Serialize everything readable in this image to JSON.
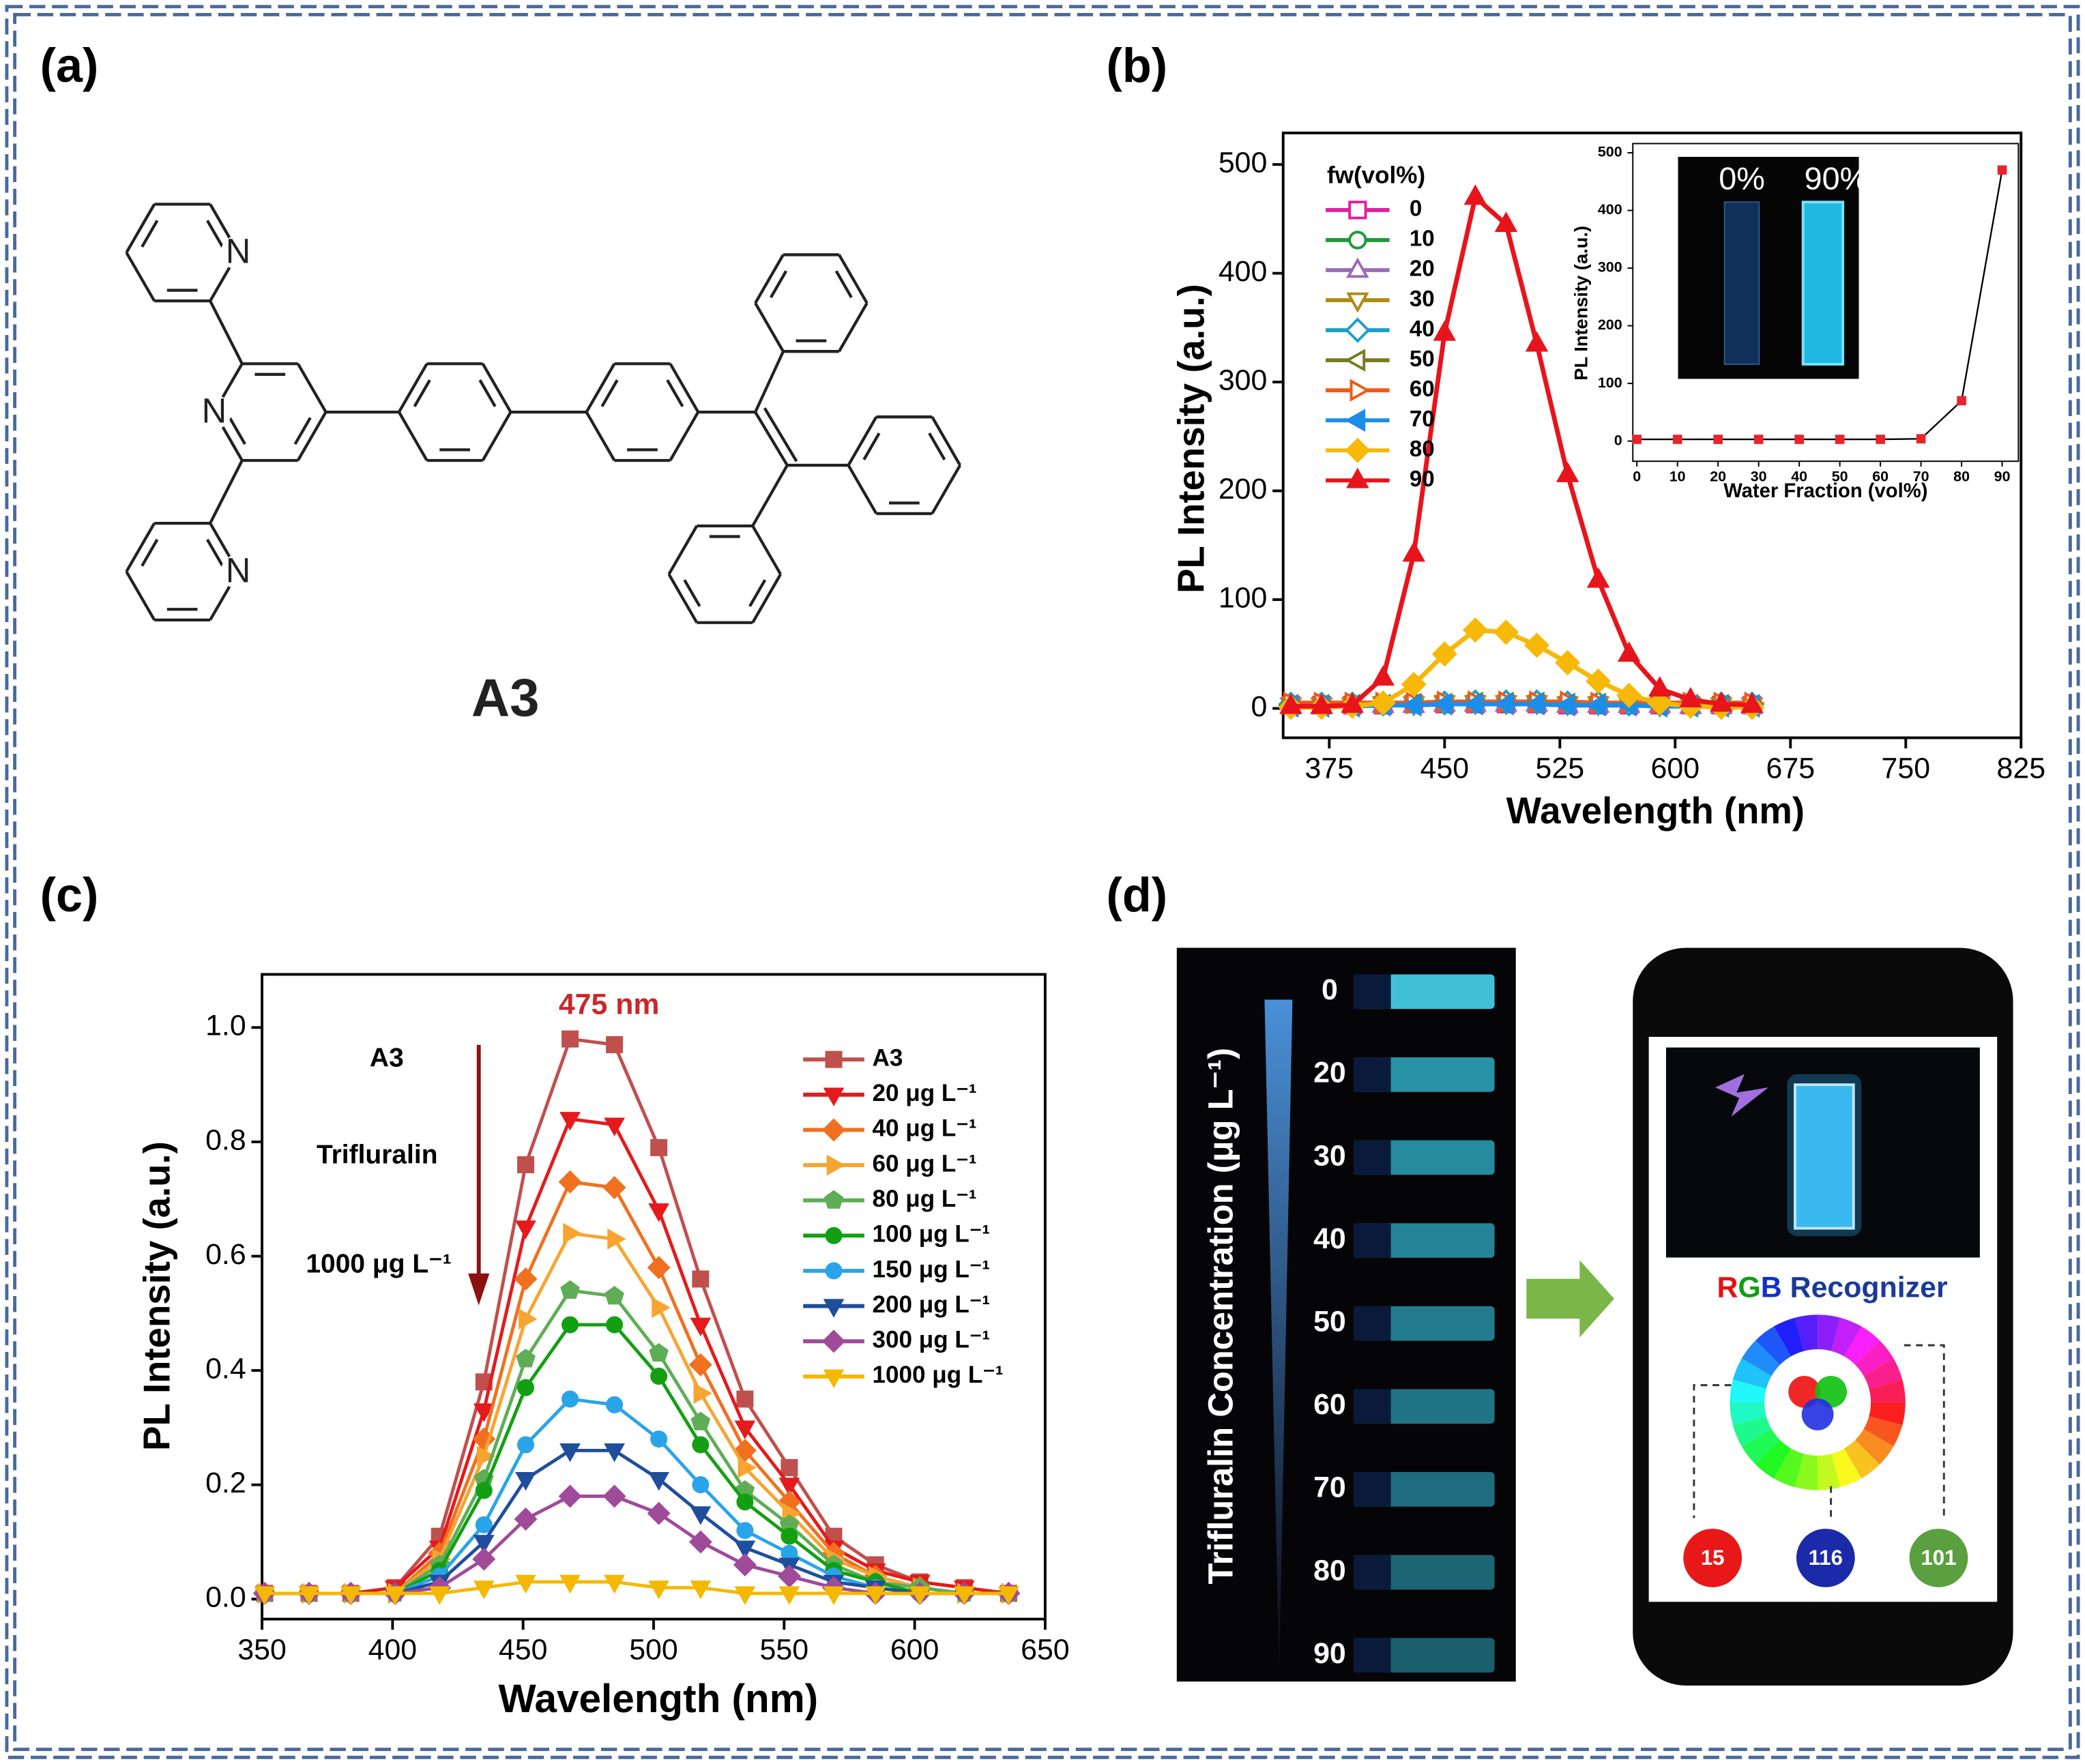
{
  "panel_labels": [
    "(a)",
    "(b)",
    "(c)",
    "(d)"
  ],
  "panel_a": {
    "atoms": [
      "N",
      "N",
      "N"
    ],
    "label": "A3"
  },
  "chart_data": [
    {
      "type": "line",
      "x_label": "Wavelength (nm)",
      "y_label": "PL Intensity (a.u.)",
      "legend_title": "fw(vol%)",
      "x": [
        350,
        370,
        390,
        410,
        430,
        450,
        470,
        490,
        510,
        530,
        550,
        570,
        590,
        610,
        630,
        650
      ],
      "xlim": [
        345,
        825
      ],
      "xticks": [
        375,
        450,
        525,
        600,
        675,
        750,
        825
      ],
      "ylim": [
        -27,
        529
      ],
      "yticks": [
        0,
        100,
        200,
        300,
        400,
        500
      ],
      "series": [
        {
          "name": "0",
          "color": "#e0209a",
          "marker": "square",
          "filled": false,
          "values": [
            3,
            3,
            3,
            3,
            4,
            4,
            4,
            4,
            4,
            3,
            3,
            3,
            3,
            3,
            3,
            3
          ]
        },
        {
          "name": "10",
          "color": "#1e9a3c",
          "marker": "circle",
          "filled": false,
          "values": [
            4,
            4,
            4,
            4,
            4,
            5,
            5,
            5,
            5,
            4,
            4,
            4,
            4,
            4,
            4,
            4
          ]
        },
        {
          "name": "20",
          "color": "#9b6bb8",
          "marker": "triangle-up",
          "filled": false,
          "values": [
            2,
            2,
            3,
            3,
            3,
            4,
            4,
            4,
            4,
            3,
            3,
            3,
            3,
            2,
            2,
            2
          ]
        },
        {
          "name": "30",
          "color": "#b08a10",
          "marker": "triangle-down",
          "filled": false,
          "values": [
            3,
            3,
            3,
            4,
            4,
            5,
            5,
            5,
            5,
            4,
            4,
            4,
            3,
            3,
            3,
            3
          ]
        },
        {
          "name": "40",
          "color": "#1aa0c8",
          "marker": "diamond",
          "filled": false,
          "values": [
            4,
            4,
            4,
            4,
            5,
            5,
            6,
            6,
            6,
            5,
            5,
            4,
            4,
            4,
            4,
            4
          ]
        },
        {
          "name": "50",
          "color": "#7a7a20",
          "marker": "triangle-left",
          "filled": false,
          "values": [
            3,
            3,
            3,
            3,
            4,
            4,
            5,
            5,
            5,
            4,
            4,
            3,
            3,
            3,
            3,
            3
          ]
        },
        {
          "name": "60",
          "color": "#f05a14",
          "marker": "triangle-right",
          "filled": false,
          "values": [
            5,
            5,
            5,
            5,
            5,
            6,
            6,
            6,
            6,
            6,
            5,
            5,
            5,
            5,
            5,
            5
          ]
        },
        {
          "name": "70",
          "color": "#1a8ee8",
          "marker": "triangle-left",
          "filled": true,
          "values": [
            2,
            2,
            2,
            3,
            3,
            4,
            4,
            4,
            4,
            3,
            3,
            3,
            2,
            2,
            2,
            2
          ]
        },
        {
          "name": "80",
          "color": "#f8b808",
          "marker": "diamond",
          "filled": true,
          "values": [
            1,
            1,
            2,
            5,
            22,
            50,
            72,
            70,
            58,
            42,
            25,
            12,
            5,
            2,
            1,
            1
          ]
        },
        {
          "name": "90",
          "color": "#e8141c",
          "marker": "triangle-up",
          "filled": true,
          "values": [
            2,
            2,
            3,
            28,
            142,
            345,
            470,
            445,
            335,
            215,
            118,
            50,
            18,
            8,
            4,
            3
          ]
        }
      ]
    },
    {
      "type": "line",
      "x_label": "Water Fraction (vol%)",
      "y_label": "PL Intensity (a.u.)",
      "photo_labels": [
        "0%",
        "90%"
      ],
      "x": [
        0,
        10,
        20,
        30,
        40,
        50,
        60,
        70,
        80,
        90
      ],
      "xlim": [
        -1,
        94
      ],
      "xticks": [
        0,
        10,
        20,
        30,
        40,
        50,
        60,
        70,
        80,
        90
      ],
      "ylim": [
        -35,
        516
      ],
      "yticks": [
        0,
        100,
        200,
        300,
        400,
        500
      ],
      "series": [
        {
          "color": "#000000",
          "marker_color": "#e8242a",
          "marker": "square",
          "filled": true,
          "values": [
            3,
            3,
            3,
            3,
            3,
            3,
            3,
            4,
            70,
            470
          ]
        }
      ]
    },
    {
      "type": "line",
      "x_label": "Wavelength (nm)",
      "y_label": "PL Intensity (a.u.)",
      "peak_label": "475 nm",
      "arrow_labels": [
        "A3",
        "Trifluralin",
        "1000 μg L⁻¹"
      ],
      "x": [
        351,
        368,
        384,
        401,
        418,
        435,
        451,
        468,
        485,
        502,
        518,
        535,
        552,
        569,
        585,
        602,
        619,
        636
      ],
      "xlim": [
        350,
        650
      ],
      "xticks": [
        350,
        400,
        450,
        500,
        550,
        600,
        650
      ],
      "ylim": [
        -0.035,
        1.093
      ],
      "yticks": [
        {
          "value": 0,
          "label": "0.0"
        },
        0.2,
        0.4,
        0.6,
        0.8,
        {
          "value": 1,
          "label": "1.0"
        }
      ],
      "series": [
        {
          "name": "A3",
          "color": "#c0504d",
          "marker": "square",
          "filled": true,
          "values": [
            0.01,
            0.01,
            0.01,
            0.02,
            0.11,
            0.38,
            0.76,
            0.98,
            0.97,
            0.79,
            0.56,
            0.35,
            0.23,
            0.11,
            0.06,
            0.03,
            0.02,
            0.01
          ]
        },
        {
          "name": "20 μg L⁻¹",
          "color": "#e41a1c",
          "marker": "triangle-down",
          "filled": true,
          "values": [
            0.01,
            0.01,
            0.01,
            0.02,
            0.09,
            0.33,
            0.65,
            0.84,
            0.83,
            0.68,
            0.48,
            0.3,
            0.2,
            0.09,
            0.05,
            0.03,
            0.02,
            0.01
          ]
        },
        {
          "name": "40 μg L⁻¹",
          "color": "#f07020",
          "marker": "diamond",
          "filled": true,
          "values": [
            0.01,
            0.01,
            0.01,
            0.01,
            0.08,
            0.28,
            0.56,
            0.73,
            0.72,
            0.58,
            0.41,
            0.26,
            0.17,
            0.08,
            0.04,
            0.02,
            0.01,
            0.01
          ]
        },
        {
          "name": "60 μg L⁻¹",
          "color": "#f7a530",
          "marker": "triangle-right",
          "filled": true,
          "values": [
            0.01,
            0.01,
            0.01,
            0.01,
            0.07,
            0.25,
            0.49,
            0.64,
            0.63,
            0.51,
            0.36,
            0.23,
            0.15,
            0.07,
            0.04,
            0.02,
            0.01,
            0.01
          ]
        },
        {
          "name": "80 μg L⁻¹",
          "color": "#5fad56",
          "marker": "pentagon",
          "filled": true,
          "values": [
            0.01,
            0.01,
            0.01,
            0.01,
            0.06,
            0.21,
            0.42,
            0.54,
            0.53,
            0.43,
            0.31,
            0.19,
            0.13,
            0.06,
            0.03,
            0.02,
            0.01,
            0.01
          ]
        },
        {
          "name": "100 μg L⁻¹",
          "color": "#12a012",
          "marker": "circle",
          "filled": true,
          "values": [
            0.01,
            0.01,
            0.01,
            0.01,
            0.05,
            0.19,
            0.37,
            0.48,
            0.48,
            0.39,
            0.27,
            0.17,
            0.11,
            0.05,
            0.03,
            0.01,
            0.01,
            0.01
          ]
        },
        {
          "name": "150 μg L⁻¹",
          "color": "#2aa4e8",
          "marker": "circle",
          "filled": true,
          "values": [
            0.01,
            0.01,
            0.01,
            0.01,
            0.04,
            0.13,
            0.27,
            0.35,
            0.34,
            0.28,
            0.2,
            0.12,
            0.08,
            0.04,
            0.02,
            0.01,
            0.01,
            0.01
          ]
        },
        {
          "name": "200 μg L⁻¹",
          "color": "#1f4e9c",
          "marker": "triangle-down",
          "filled": true,
          "values": [
            0.01,
            0.01,
            0.01,
            0.01,
            0.03,
            0.1,
            0.21,
            0.26,
            0.26,
            0.21,
            0.15,
            0.09,
            0.06,
            0.03,
            0.02,
            0.01,
            0.01,
            0.01
          ]
        },
        {
          "name": "300 μg L⁻¹",
          "color": "#a04a9a",
          "marker": "diamond",
          "filled": true,
          "values": [
            0.01,
            0.01,
            0.01,
            0.01,
            0.02,
            0.07,
            0.14,
            0.18,
            0.18,
            0.15,
            0.1,
            0.06,
            0.04,
            0.02,
            0.01,
            0.01,
            0.01,
            0.01
          ]
        },
        {
          "name": "1000 μg L⁻¹",
          "color": "#f5b800",
          "marker": "triangle-down",
          "filled": true,
          "values": [
            0.01,
            0.01,
            0.01,
            0.01,
            0.01,
            0.02,
            0.03,
            0.03,
            0.03,
            0.02,
            0.02,
            0.01,
            0.01,
            0.01,
            0.01,
            0.01,
            0.01,
            0.01
          ]
        }
      ]
    }
  ],
  "panel_d": {
    "axis_label": "Trifluralin  Concentration  (μg L⁻¹)",
    "concentrations": [
      "0",
      "20",
      "30",
      "40",
      "50",
      "60",
      "70",
      "80",
      "90"
    ],
    "recognizer_title": [
      "R",
      "G",
      "B",
      " Recognizer"
    ],
    "rgb_values": [
      "15",
      "116",
      "101"
    ]
  }
}
